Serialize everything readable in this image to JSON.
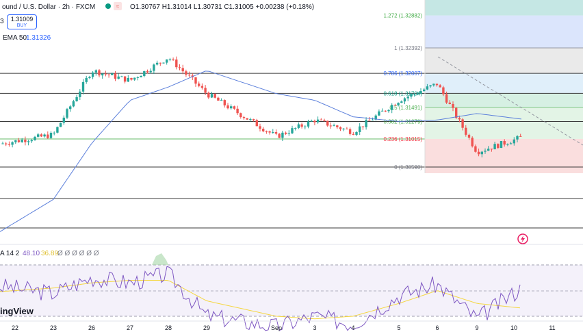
{
  "header": {
    "symbol_title": "ound / U.S. Dollar · 2h · FXCM",
    "ohlc": "O1.30767  H1.31014  L1.30731  C1.31005  +0.00238 (+0.18%)",
    "buy_price": "1.31009",
    "buy_label": "BUY",
    "left_digit": "3",
    "ema_label": "EMA 50",
    "ema_value": "1.31326"
  },
  "rsi_legend": {
    "label": "A 14 2",
    "value": "48.10",
    "ma_value": "36.89",
    "extras": "Ø Ø Ø Ø Ø Ø"
  },
  "watermark": "ingView",
  "colors": {
    "up": "#26a69a",
    "down": "#ef5350",
    "ema": "#2962ff",
    "rsi": "#7e57c2",
    "rsi_ma": "#f5d742"
  },
  "chart_data": {
    "type": "line",
    "title": "ound / U.S. Dollar · 2h · FXCM",
    "x_ticks": [
      "22",
      "23",
      "26",
      "27",
      "28",
      "29",
      "Sep",
      "3",
      "4",
      "5",
      "6",
      "9",
      "10",
      "11"
    ],
    "fib_levels": [
      {
        "label": "1.272 (1.32882)",
        "ratio": 1.272,
        "price": 1.32882,
        "color": "#4caf50"
      },
      {
        "label": "1 (1.32392)",
        "ratio": 1,
        "price": 1.32392,
        "color": "#787b86"
      },
      {
        "label": "0.786 (1.32007)",
        "ratio": 0.786,
        "price": 1.32007,
        "color": "#2962ff"
      },
      {
        "label": "0.618 (1.31704)",
        "ratio": 0.618,
        "price": 1.31704,
        "color": "#089981"
      },
      {
        "label": "0.5 (1.31491)",
        "ratio": 0.5,
        "price": 1.31491,
        "color": "#4caf50"
      },
      {
        "label": "0.382 (1.31279)",
        "ratio": 0.382,
        "price": 1.31279,
        "color": "#4caf50"
      },
      {
        "label": "0.236 (1.31015)",
        "ratio": 0.236,
        "price": 1.31015,
        "color": "#f23645"
      },
      {
        "label": "0 (1.30590)",
        "ratio": 0,
        "price": 1.3059,
        "color": "#787b86"
      }
    ],
    "price_series": {
      "name": "",
      "x": [
        "22",
        "23",
        "26",
        "27",
        "28",
        "29",
        "Sep",
        "3",
        "4",
        "5",
        "6",
        "9",
        "10"
      ],
      "values": [
        1.3098,
        1.3108,
        1.3205,
        1.319,
        1.3225,
        1.317,
        1.3105,
        1.313,
        1.3112,
        1.316,
        1.3185,
        1.3082,
        1.31
      ]
    },
    "ema_series": {
      "name": "EMA 50",
      "x": [
        "22",
        "23",
        "26",
        "27",
        "28",
        "29",
        "Sep",
        "3",
        "4",
        "5",
        "6",
        "9",
        "10"
      ],
      "values": [
        1.2975,
        1.301,
        1.3095,
        1.316,
        1.318,
        1.3205,
        1.317,
        1.316,
        1.3135,
        1.3128,
        1.313,
        1.314,
        1.3133
      ]
    },
    "rsi_series": {
      "name": "",
      "x": [
        "22",
        "23",
        "26",
        "27",
        "28",
        "29",
        "Sep",
        "3",
        "4",
        "5",
        "6",
        "9",
        "10"
      ],
      "values": [
        52,
        48,
        60,
        56,
        63,
        30,
        22,
        30,
        24,
        46,
        55,
        28,
        48
      ]
    },
    "rsi_ma_series": {
      "name": "",
      "x": [
        "22",
        "23",
        "26",
        "27",
        "28",
        "29",
        "Sep",
        "3",
        "4",
        "5",
        "6",
        "9",
        "10"
      ],
      "values": [
        50,
        52,
        56,
        58,
        58,
        42,
        30,
        28,
        30,
        40,
        50,
        40,
        37
      ]
    },
    "ylim": [
      1.295,
      1.33
    ],
    "rsi_ylim": [
      15,
      75
    ],
    "grid": false
  }
}
